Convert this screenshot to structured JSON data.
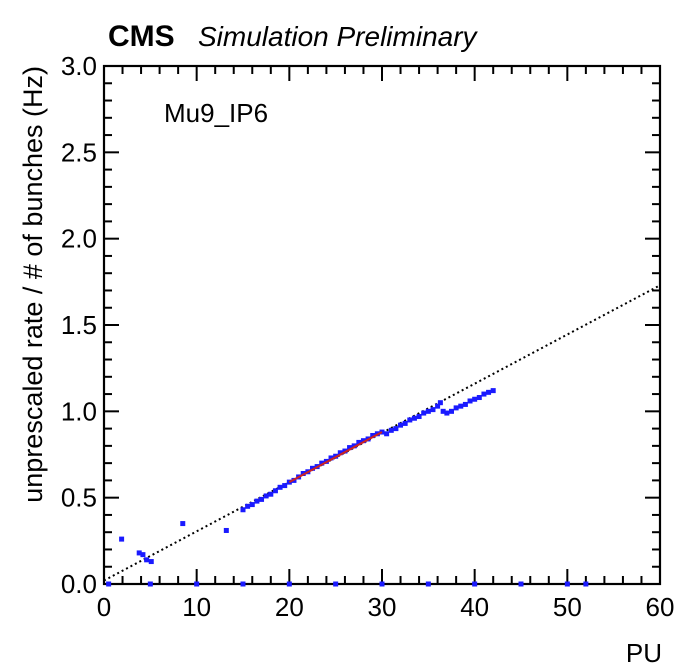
{
  "header": {
    "experiment": "CMS",
    "status": "Simulation Preliminary"
  },
  "chart_data": {
    "type": "scatter",
    "annotation": "Mu9_IP6",
    "xlabel": "PU",
    "ylabel": "unprescaled rate / # of bunches (Hz)",
    "xlim": [
      0,
      60
    ],
    "ylim": [
      0,
      3.0
    ],
    "x_ticks": [
      "0",
      "10",
      "20",
      "30",
      "40",
      "50",
      "60"
    ],
    "y_ticks": [
      "0.0",
      "0.5",
      "1.0",
      "1.5",
      "2.0",
      "2.5",
      "3.0"
    ],
    "grid": false,
    "colors": {
      "points": "#1a1aff",
      "fit_overlay": "#cc2222",
      "reference_line": "#000000"
    },
    "reference_line": {
      "style": "dotted",
      "points": [
        [
          0,
          0.02
        ],
        [
          60,
          1.73
        ]
      ]
    },
    "series": [
      {
        "points": [
          [
            1.9,
            0.26
          ],
          [
            3.8,
            0.18
          ],
          [
            4.2,
            0.17
          ],
          [
            4.6,
            0.14
          ],
          [
            5.1,
            0.13
          ],
          [
            8.5,
            0.35
          ],
          [
            13.2,
            0.31
          ],
          [
            15.0,
            0.43
          ],
          [
            15.5,
            0.45
          ],
          [
            16.0,
            0.46
          ],
          [
            16.5,
            0.48
          ],
          [
            17.0,
            0.49
          ],
          [
            17.5,
            0.51
          ],
          [
            18.0,
            0.52
          ],
          [
            18.5,
            0.54
          ],
          [
            19.0,
            0.56
          ],
          [
            19.5,
            0.57
          ],
          [
            20.0,
            0.59
          ],
          [
            20.5,
            0.6
          ],
          [
            21.0,
            0.62
          ],
          [
            21.5,
            0.64
          ],
          [
            22.0,
            0.65
          ],
          [
            22.5,
            0.67
          ],
          [
            23.0,
            0.68
          ],
          [
            23.5,
            0.7
          ],
          [
            24.0,
            0.71
          ],
          [
            24.5,
            0.73
          ],
          [
            25.0,
            0.74
          ],
          [
            25.5,
            0.76
          ],
          [
            26.0,
            0.77
          ],
          [
            26.5,
            0.79
          ],
          [
            27.0,
            0.8
          ],
          [
            27.5,
            0.82
          ],
          [
            28.0,
            0.83
          ],
          [
            28.5,
            0.84
          ],
          [
            29.0,
            0.86
          ],
          [
            29.5,
            0.87
          ],
          [
            30.0,
            0.88
          ],
          [
            30.5,
            0.87
          ],
          [
            31.0,
            0.89
          ],
          [
            31.5,
            0.9
          ],
          [
            32.0,
            0.92
          ],
          [
            32.5,
            0.93
          ],
          [
            33.0,
            0.95
          ],
          [
            33.5,
            0.96
          ],
          [
            34.0,
            0.97
          ],
          [
            34.5,
            0.99
          ],
          [
            35.0,
            1.0
          ],
          [
            35.5,
            1.01
          ],
          [
            36.0,
            1.03
          ],
          [
            36.3,
            1.05
          ],
          [
            36.6,
            1.0
          ],
          [
            37.0,
            0.99
          ],
          [
            37.5,
            1.0
          ],
          [
            38.0,
            1.02
          ],
          [
            38.5,
            1.03
          ],
          [
            39.0,
            1.04
          ],
          [
            39.5,
            1.06
          ],
          [
            40.0,
            1.07
          ],
          [
            40.5,
            1.08
          ],
          [
            41.0,
            1.1
          ],
          [
            41.5,
            1.11
          ],
          [
            42.0,
            1.12
          ],
          [
            0.5,
            0.0
          ],
          [
            5,
            0.0
          ],
          [
            10,
            0.0
          ],
          [
            15,
            0.0
          ],
          [
            20,
            0.0
          ],
          [
            25,
            0.0
          ],
          [
            30,
            0.0
          ],
          [
            35,
            0.0
          ],
          [
            40,
            0.0
          ],
          [
            45,
            0.0
          ],
          [
            50,
            0.0
          ],
          [
            52,
            0.0
          ]
        ]
      }
    ],
    "fit_overlay": {
      "x_range": [
        20,
        30
      ]
    }
  }
}
